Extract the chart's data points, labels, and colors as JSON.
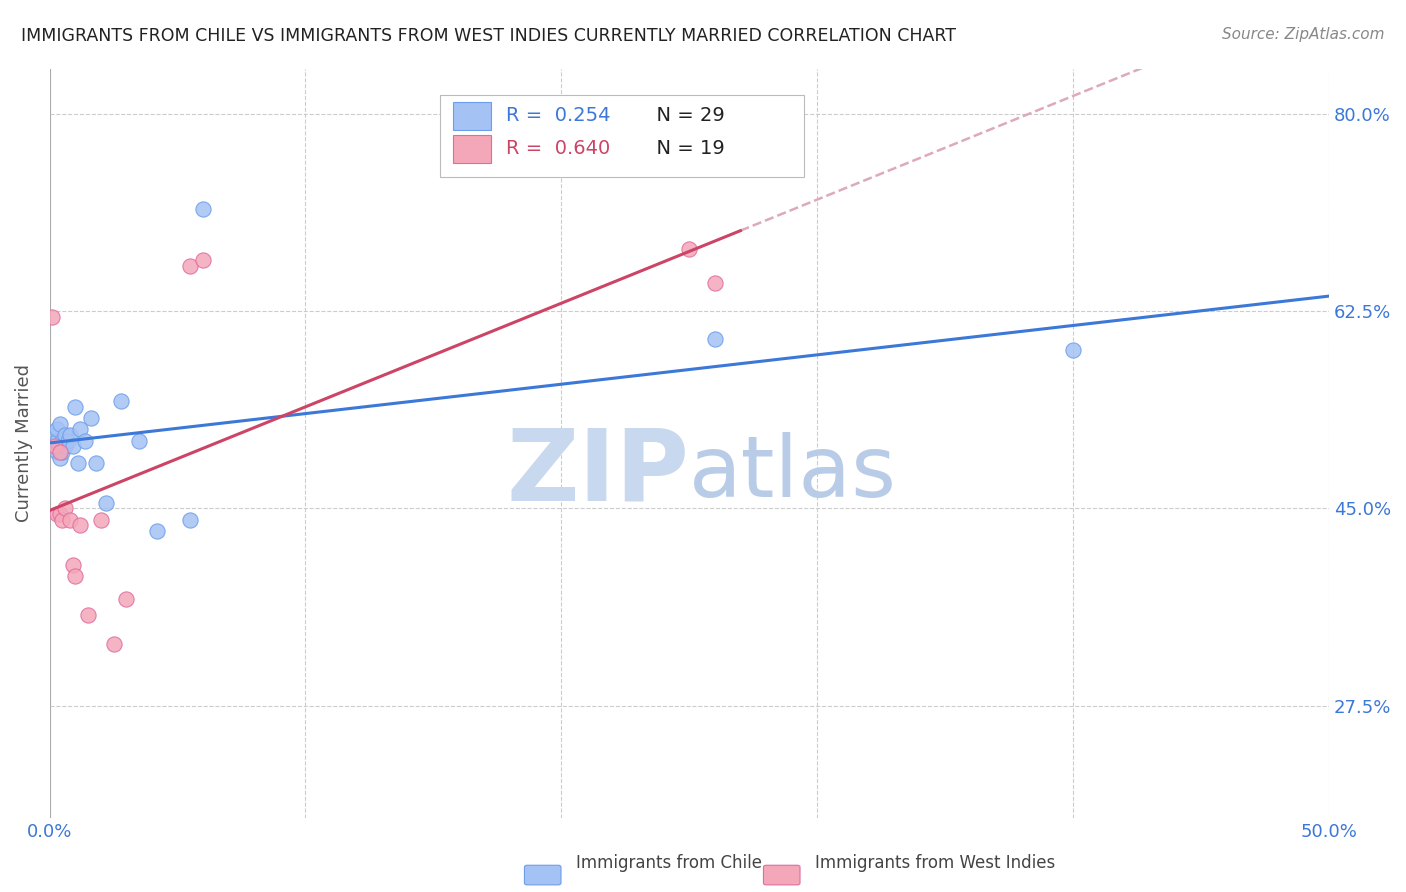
{
  "title": "IMMIGRANTS FROM CHILE VS IMMIGRANTS FROM WEST INDIES CURRENTLY MARRIED CORRELATION CHART",
  "source": "Source: ZipAtlas.com",
  "ylabel": "Currently Married",
  "yticks": [
    0.275,
    0.45,
    0.625,
    0.8
  ],
  "ytick_labels": [
    "27.5%",
    "45.0%",
    "62.5%",
    "80.0%"
  ],
  "xmin": 0.0,
  "xmax": 0.5,
  "ymin": 0.175,
  "ymax": 0.84,
  "blue_label": "Immigrants from Chile",
  "pink_label": "Immigrants from West Indies",
  "blue_R": 0.254,
  "blue_N": 29,
  "pink_R": 0.64,
  "pink_N": 19,
  "blue_color": "#a4c2f4",
  "pink_color": "#f4a7b9",
  "blue_edge_color": "#6d9eeb",
  "pink_edge_color": "#e06c9f",
  "blue_line_color": "#3c78d8",
  "pink_line_color": "#cc4466",
  "ref_line_color": "#ddaabb",
  "watermark_zip_color": "#c8d8ee",
  "watermark_atlas_color": "#b8cce8",
  "title_color": "#222222",
  "axis_label_color": "#3c78d8",
  "ytick_color": "#3c78d8",
  "source_color": "#888888",
  "blue_dots_x": [
    0.001,
    0.002,
    0.002,
    0.003,
    0.003,
    0.003,
    0.004,
    0.004,
    0.005,
    0.005,
    0.006,
    0.006,
    0.007,
    0.008,
    0.009,
    0.01,
    0.011,
    0.012,
    0.014,
    0.016,
    0.018,
    0.022,
    0.028,
    0.035,
    0.042,
    0.055,
    0.06,
    0.26,
    0.4
  ],
  "blue_dots_y": [
    0.505,
    0.51,
    0.515,
    0.5,
    0.51,
    0.52,
    0.495,
    0.525,
    0.5,
    0.51,
    0.505,
    0.515,
    0.51,
    0.515,
    0.505,
    0.54,
    0.49,
    0.52,
    0.51,
    0.53,
    0.49,
    0.455,
    0.545,
    0.51,
    0.43,
    0.44,
    0.715,
    0.6,
    0.59
  ],
  "pink_dots_x": [
    0.001,
    0.002,
    0.003,
    0.004,
    0.004,
    0.005,
    0.006,
    0.008,
    0.009,
    0.01,
    0.012,
    0.015,
    0.02,
    0.025,
    0.03,
    0.055,
    0.06,
    0.25,
    0.26
  ],
  "pink_dots_y": [
    0.62,
    0.505,
    0.445,
    0.445,
    0.5,
    0.44,
    0.45,
    0.44,
    0.4,
    0.39,
    0.435,
    0.355,
    0.44,
    0.33,
    0.37,
    0.665,
    0.67,
    0.68,
    0.65
  ],
  "dot_size": 120
}
